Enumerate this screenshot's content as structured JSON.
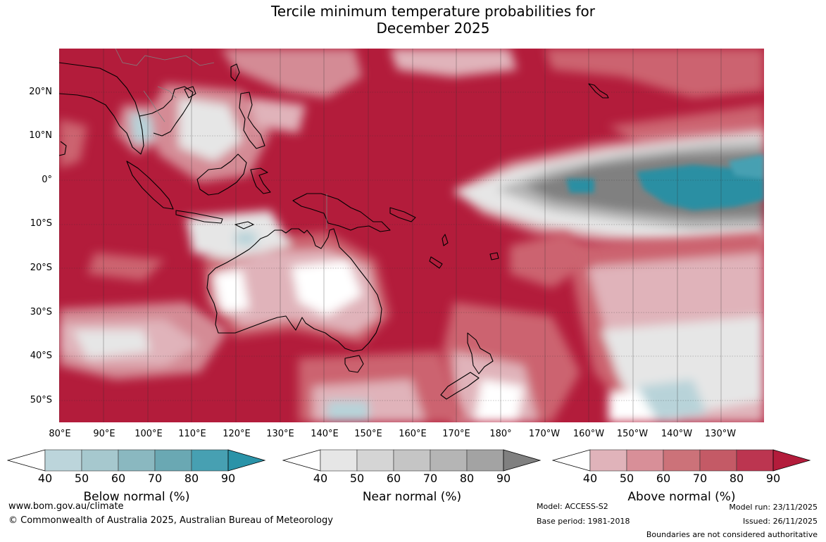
{
  "title": {
    "line1": "Tercile minimum temperature probabilities for",
    "line2": "December 2025"
  },
  "map": {
    "lat_labels": [
      "20°N",
      "10°N",
      "0°",
      "10°S",
      "20°S",
      "30°S",
      "40°S",
      "50°S"
    ],
    "lon_labels": [
      "80°E",
      "90°E",
      "100°E",
      "110°E",
      "120°E",
      "130°E",
      "140°E",
      "150°E",
      "160°E",
      "170°E",
      "180°",
      "170°W",
      "160°W",
      "150°W",
      "140°W",
      "130°W"
    ],
    "colors": {
      "above_90": "#b31c3b",
      "above_80": "#c03050",
      "above_70": "#cc6370",
      "above_60": "#d48b95",
      "above_50": "#e0b3ba",
      "near_40": "#e6e6e6",
      "near_60": "#b5b5b5",
      "near_90": "#808080",
      "below_50": "#b8d3d9",
      "below_90": "#2a8fa3",
      "coast": "#000000"
    }
  },
  "colorbars": {
    "below": {
      "title": "Below normal (%)",
      "ticks": [
        "40",
        "50",
        "60",
        "70",
        "80",
        "90"
      ],
      "colors": [
        "#bcd5db",
        "#a6c8ce",
        "#8ab8c0",
        "#6aa8b3",
        "#47a0b2",
        "#2a93a8"
      ]
    },
    "near": {
      "title": "Near normal (%)",
      "ticks": [
        "40",
        "50",
        "60",
        "70",
        "80",
        "90"
      ],
      "colors": [
        "#e6e6e6",
        "#d5d5d5",
        "#c5c5c5",
        "#b5b5b5",
        "#a3a3a3",
        "#808080"
      ]
    },
    "above": {
      "title": "Above normal (%)",
      "ticks": [
        "40",
        "50",
        "60",
        "70",
        "80",
        "90"
      ],
      "colors": [
        "#e0b3ba",
        "#d88f98",
        "#cc7279",
        "#c45a66",
        "#bc3550",
        "#b31c3b"
      ]
    }
  },
  "footer": {
    "website": "www.bom.gov.au/climate",
    "copyright": "© Commonwealth of Australia 2025, Australian Bureau of Meteorology",
    "model": "Model: ACCESS-S2",
    "base_period": "Base period: 1981-2018",
    "model_run": "Model run: 23/11/2025",
    "issued": "Issued: 26/11/2025",
    "boundaries": "Boundaries are not considered authoritative"
  }
}
